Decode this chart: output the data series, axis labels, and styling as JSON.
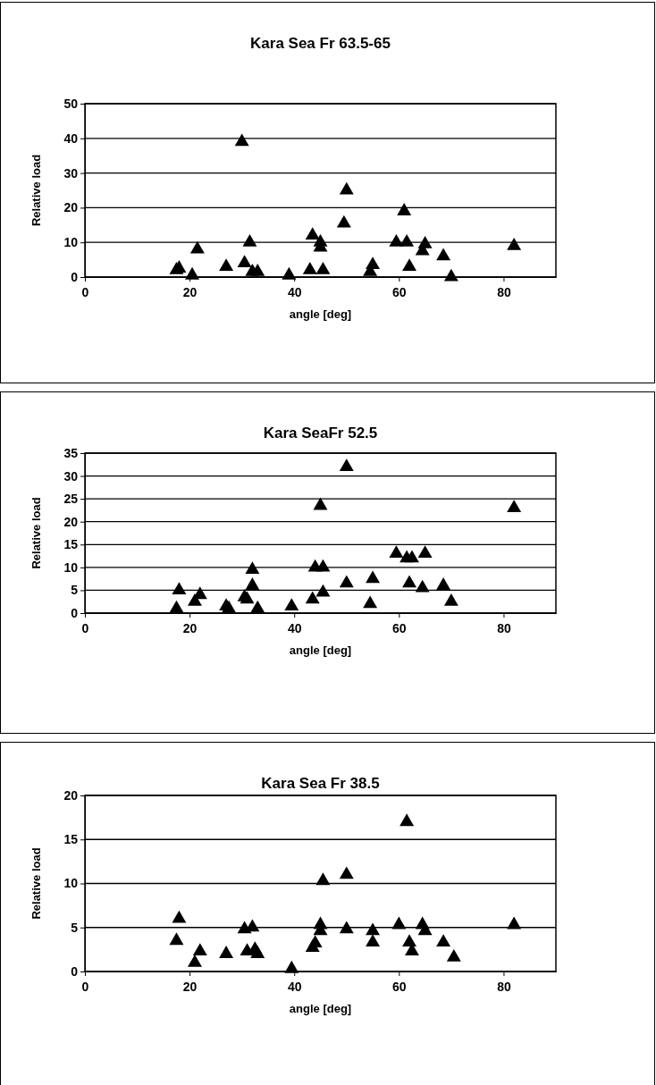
{
  "chart_data": [
    {
      "type": "scatter",
      "title": "Kara Sea Fr 63.5-65",
      "xlabel": "angle [deg]",
      "ylabel": "Relative load",
      "marker": "triangle",
      "grid": "y",
      "xlim": [
        0,
        90
      ],
      "xticks": [
        0,
        20,
        40,
        60,
        80
      ],
      "ylim": [
        0,
        50
      ],
      "yticks": [
        0,
        10,
        20,
        30,
        40,
        50
      ],
      "series": [
        {
          "color": "#000000",
          "x": [
            17.5,
            18,
            20.5,
            21.5,
            27,
            30,
            30.5,
            31.5,
            32,
            33,
            39,
            43,
            43.5,
            45,
            45,
            45.5,
            49.5,
            50,
            54.5,
            55,
            59.5,
            61,
            61.5,
            62,
            64.5,
            65,
            68.5,
            70,
            82
          ],
          "values": [
            2,
            2.5,
            0.5,
            8,
            3,
            39,
            4,
            10,
            1.5,
            1.5,
            0.5,
            2,
            12,
            10,
            8.5,
            2,
            15.5,
            25,
            1.5,
            3.5,
            10,
            19,
            10,
            3,
            7.5,
            9.5,
            6,
            0,
            9
          ]
        }
      ]
    },
    {
      "type": "scatter",
      "title": "Kara SeaFr 52.5",
      "xlabel": "angle [deg]",
      "ylabel": "Relative load",
      "marker": "triangle",
      "grid": "y",
      "xlim": [
        0,
        90
      ],
      "xticks": [
        0,
        20,
        40,
        60,
        80
      ],
      "ylim": [
        0,
        35
      ],
      "yticks": [
        0,
        5,
        10,
        15,
        20,
        25,
        30,
        35
      ],
      "series": [
        {
          "color": "#000000",
          "x": [
            17.5,
            18,
            21,
            22,
            27,
            27.5,
            30.5,
            31,
            32,
            32,
            33,
            39.5,
            43.5,
            44,
            45,
            45.5,
            45.5,
            50,
            50,
            54.5,
            55,
            59.5,
            61.5,
            62.5,
            62,
            64.5,
            65,
            68.5,
            70,
            82
          ],
          "values": [
            1,
            5,
            2.5,
            4,
            1.5,
            1,
            3.5,
            3,
            6,
            9.5,
            1,
            1.5,
            3,
            10,
            23.5,
            10,
            4.5,
            32,
            6.5,
            2,
            7.5,
            13,
            12,
            12,
            6.5,
            5.5,
            13,
            6,
            2.5,
            23
          ]
        }
      ]
    },
    {
      "type": "scatter",
      "title": "Kara Sea Fr 38.5",
      "xlabel": "angle [deg]",
      "ylabel": "Relative load",
      "marker": "triangle",
      "grid": "y",
      "xlim": [
        0,
        90
      ],
      "xticks": [
        0,
        20,
        40,
        60,
        80
      ],
      "ylim": [
        0,
        20
      ],
      "yticks": [
        0,
        5,
        10,
        15,
        20
      ],
      "series": [
        {
          "color": "#000000",
          "x": [
            17.5,
            18,
            21,
            22,
            27,
            30.5,
            31,
            32,
            32.5,
            33,
            39.5,
            43.5,
            44,
            45,
            45.5,
            45,
            50,
            50,
            55,
            55,
            60,
            61.5,
            62,
            62.5,
            64.5,
            65,
            68.5,
            70.5,
            82
          ],
          "values": [
            3.5,
            6,
            1,
            2.3,
            2,
            4.8,
            2.3,
            5,
            2.5,
            2,
            0.3,
            2.7,
            3.2,
            4.6,
            10.3,
            5.3,
            11,
            4.8,
            3.3,
            4.6,
            5.3,
            17,
            3.3,
            2.3,
            5.3,
            4.6,
            3.3,
            1.6,
            5.3
          ]
        }
      ]
    }
  ]
}
